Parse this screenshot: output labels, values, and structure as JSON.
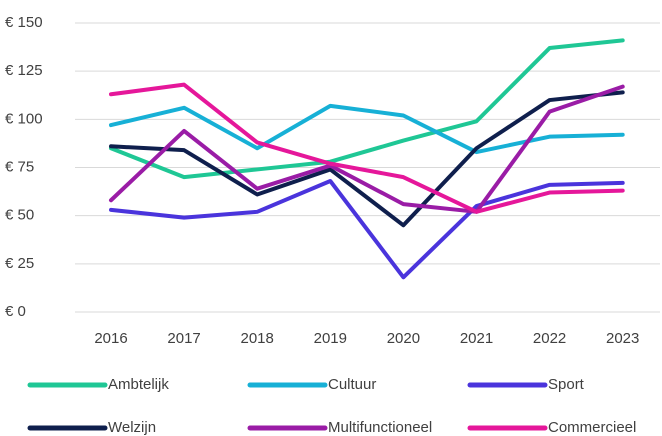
{
  "chart_data": {
    "type": "line",
    "categories": [
      "2016",
      "2017",
      "2018",
      "2019",
      "2020",
      "2021",
      "2022",
      "2023"
    ],
    "series": [
      {
        "name": "Ambtelijk",
        "color": "#1fc795",
        "values": [
          85,
          70,
          74,
          78,
          89,
          99,
          137,
          141
        ]
      },
      {
        "name": "Cultuur",
        "color": "#17b0d6",
        "values": [
          97,
          106,
          85,
          107,
          102,
          83,
          91,
          92
        ]
      },
      {
        "name": "Sport",
        "color": "#4a34dc",
        "values": [
          53,
          49,
          52,
          68,
          18,
          55,
          66,
          67
        ]
      },
      {
        "name": "Welzijn",
        "color": "#0f1f4d",
        "values": [
          86,
          84,
          61,
          74,
          45,
          85,
          110,
          114
        ]
      },
      {
        "name": "Multifunctioneel",
        "color": "#9a1ca6",
        "values": [
          58,
          94,
          64,
          76,
          56,
          52,
          104,
          117
        ]
      },
      {
        "name": "Commercieel",
        "color": "#e5179a",
        "values": [
          113,
          118,
          88,
          77,
          70,
          52,
          62,
          63
        ]
      }
    ],
    "ylim": [
      0,
      150
    ],
    "yticks": [
      {
        "value": 0,
        "label": "€ 0"
      },
      {
        "value": 25,
        "label": "€ 25"
      },
      {
        "value": 50,
        "label": "€ 50"
      },
      {
        "value": 75,
        "label": "€ 75"
      },
      {
        "value": 100,
        "label": "€ 100"
      },
      {
        "value": 125,
        "label": "€ 125"
      },
      {
        "value": 150,
        "label": "€ 150"
      }
    ],
    "grid": true
  }
}
